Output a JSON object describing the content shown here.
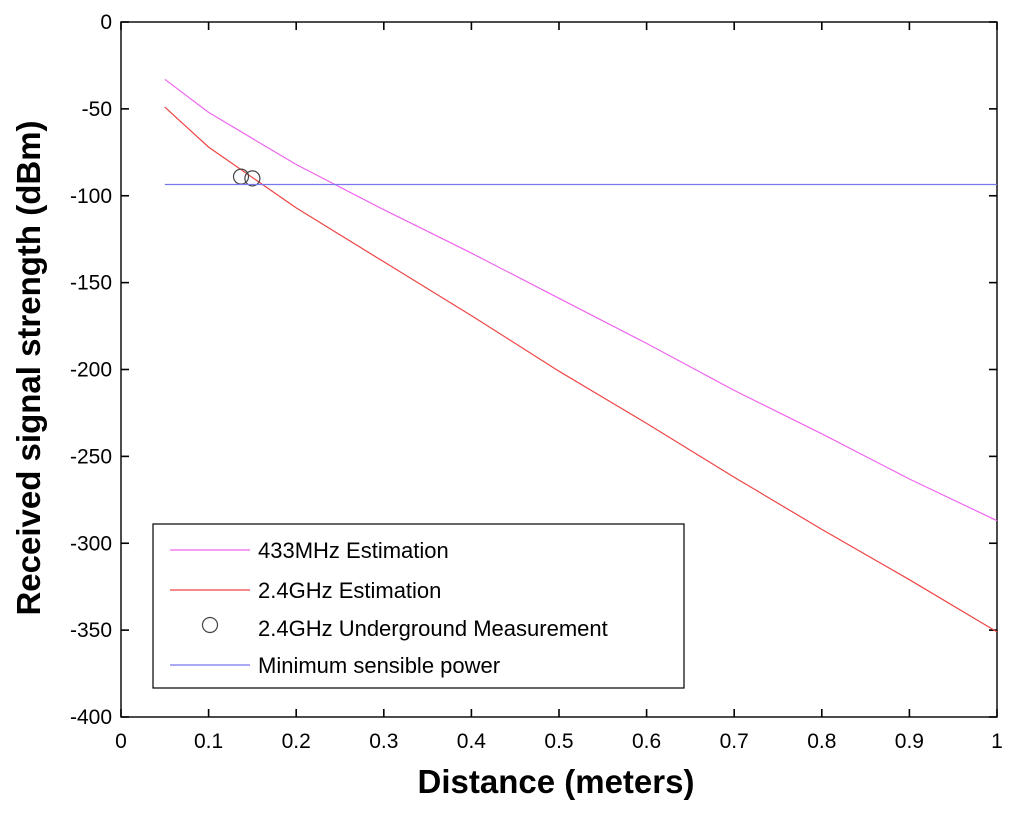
{
  "chart_data": {
    "type": "line",
    "xlabel": "Distance (meters)",
    "ylabel": "Received signal strength (dBm)",
    "xlim": [
      0,
      1
    ],
    "ylim": [
      -400,
      0
    ],
    "xticks": [
      "0",
      "0.1",
      "0.2",
      "0.3",
      "0.4",
      "0.5",
      "0.6",
      "0.7",
      "0.8",
      "0.9",
      "1"
    ],
    "yticks": [
      "0",
      "-50",
      "-100",
      "-150",
      "-200",
      "-250",
      "-300",
      "-350",
      "-400"
    ],
    "grid": false,
    "legend_position": "bottom-left",
    "series": [
      {
        "name": "433MHz Estimation",
        "kind": "line",
        "color": "#ee66ee",
        "x": [
          0.05,
          0.1,
          0.2,
          0.3,
          0.4,
          0.5,
          0.6,
          0.7,
          0.8,
          0.9,
          1.0
        ],
        "y": [
          -33,
          -52,
          -82,
          -108,
          -133,
          -159,
          -185,
          -212,
          -237,
          -263,
          -287
        ]
      },
      {
        "name": "2.4GHz Estimation",
        "kind": "line",
        "color": "#ee4444",
        "x": [
          0.05,
          0.1,
          0.2,
          0.3,
          0.4,
          0.5,
          0.6,
          0.7,
          0.8,
          0.9,
          1.0
        ],
        "y": [
          -49,
          -72,
          -107,
          -138,
          -169,
          -201,
          -231,
          -262,
          -292,
          -321,
          -351
        ]
      },
      {
        "name": "2.4GHz Underground Measurement",
        "kind": "marker",
        "color": "#444444",
        "x": [
          0.137,
          0.15
        ],
        "y": [
          -89,
          -90
        ]
      },
      {
        "name": "Minimum sensible power",
        "kind": "line",
        "color": "#7777ee",
        "x": [
          0.05,
          1.0
        ],
        "y": [
          -93.5,
          -93.5
        ]
      }
    ]
  }
}
